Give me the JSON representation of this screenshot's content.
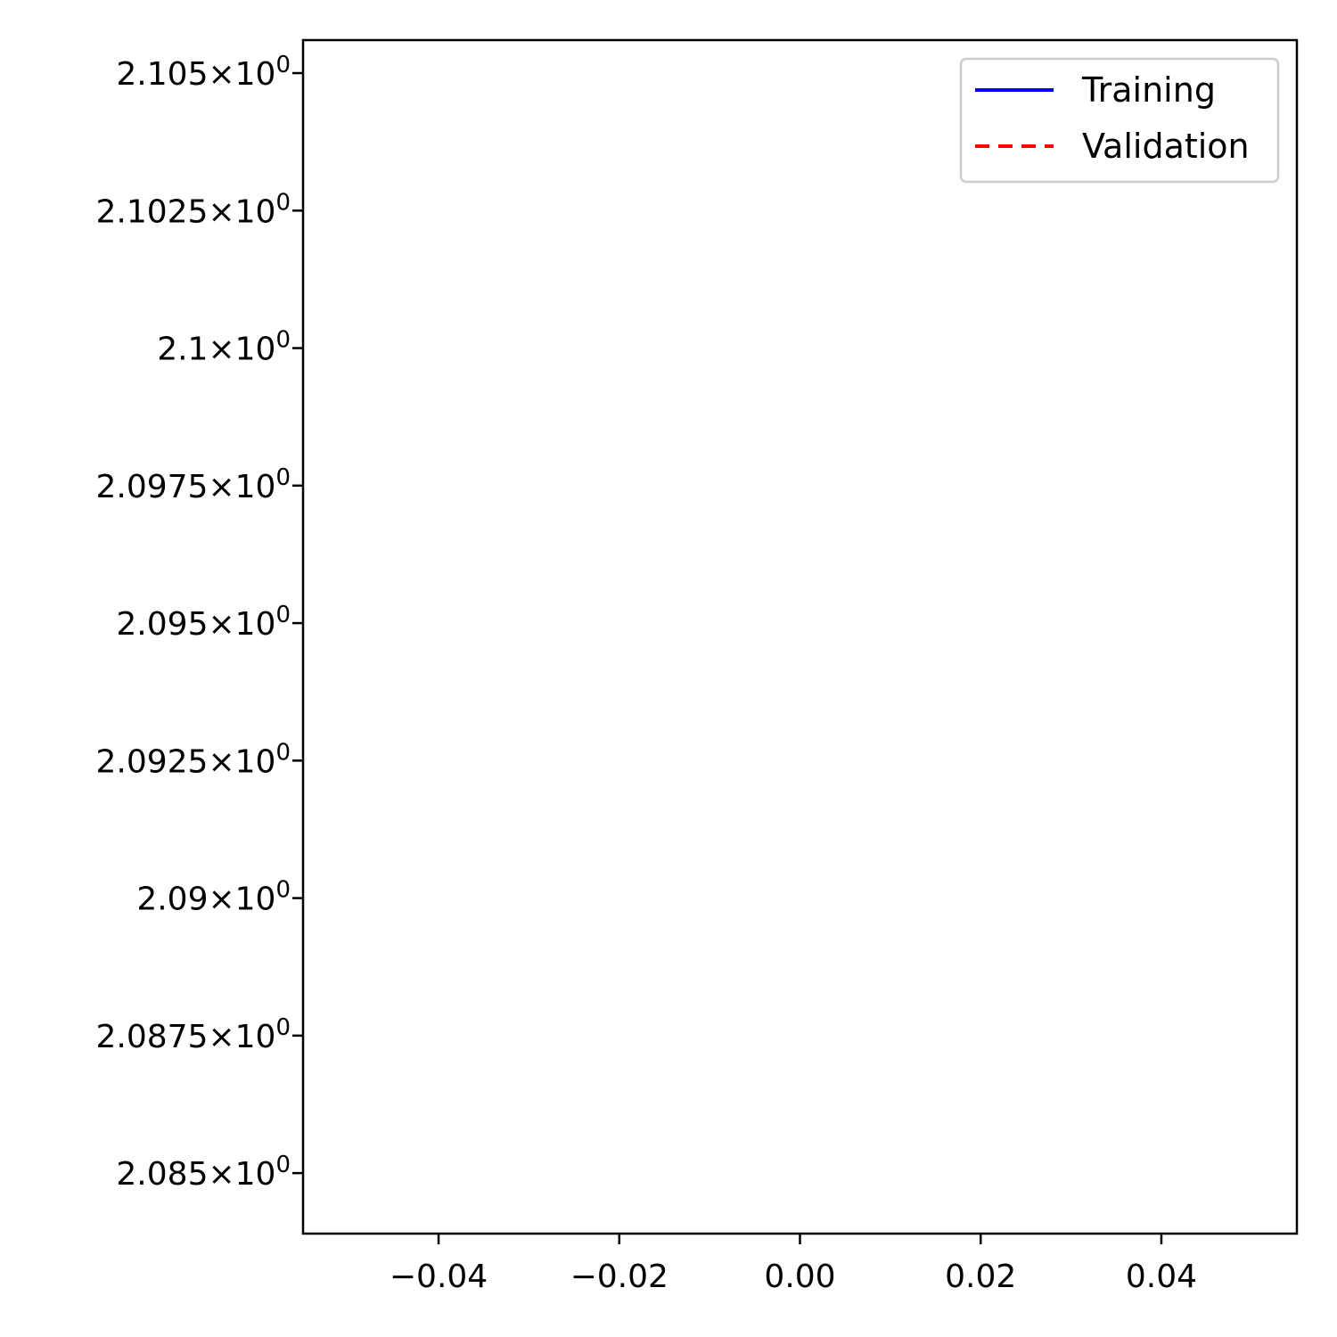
{
  "chart_data": {
    "type": "line",
    "title": "",
    "xlabel": "",
    "ylabel": "",
    "xlim": [
      -0.055,
      0.055
    ],
    "ylim": [
      2.0839,
      2.1056
    ],
    "x_ticks": [
      {
        "value": -0.04,
        "label": "−0.04"
      },
      {
        "value": -0.02,
        "label": "−0.02"
      },
      {
        "value": 0.0,
        "label": "0.00"
      },
      {
        "value": 0.02,
        "label": "0.02"
      },
      {
        "value": 0.04,
        "label": "0.04"
      }
    ],
    "y_ticks": [
      {
        "value": 2.105,
        "mantissa": "2.105",
        "base": "×10",
        "exp": "0"
      },
      {
        "value": 2.1025,
        "mantissa": "2.1025",
        "base": "×10",
        "exp": "0"
      },
      {
        "value": 2.1,
        "mantissa": "2.1",
        "base": "×10",
        "exp": "0"
      },
      {
        "value": 2.0975,
        "mantissa": "2.0975",
        "base": "×10",
        "exp": "0"
      },
      {
        "value": 2.095,
        "mantissa": "2.095",
        "base": "×10",
        "exp": "0"
      },
      {
        "value": 2.0925,
        "mantissa": "2.0925",
        "base": "×10",
        "exp": "0"
      },
      {
        "value": 2.09,
        "mantissa": "2.09",
        "base": "×10",
        "exp": "0"
      },
      {
        "value": 2.0875,
        "mantissa": "2.0875",
        "base": "×10",
        "exp": "0"
      },
      {
        "value": 2.085,
        "mantissa": "2.085",
        "base": "×10",
        "exp": "0"
      }
    ],
    "series": [
      {
        "name": "Training",
        "color": "#0000ff",
        "style": "solid",
        "x": [],
        "y": []
      },
      {
        "name": "Validation",
        "color": "#ff0000",
        "style": "dashed",
        "x": [],
        "y": []
      }
    ],
    "grid": false,
    "legend_position": "top-right"
  }
}
